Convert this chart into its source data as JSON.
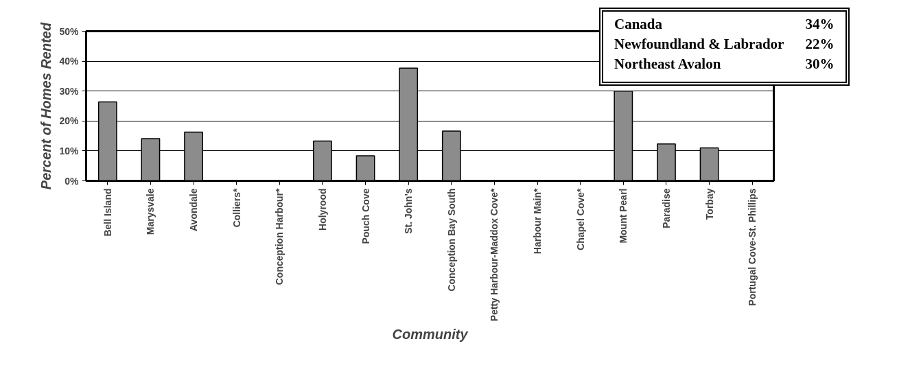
{
  "chart_data": {
    "type": "bar",
    "xlabel": "Community",
    "ylabel": "Percent of Homes Rented",
    "categories": [
      "Bell Island",
      "Marysvale",
      "Avondale",
      "Colliers*",
      "Conception Harbour*",
      "Holyrood",
      "Pouch Cove",
      "St. John's",
      "Conception Bay South",
      "Petty Harbour-Maddox Cove*",
      "Harbour Main*",
      "Chapel Cove*",
      "Mount Pearl",
      "Paradise",
      "Torbay",
      "Portugal Cove-St. Phillips"
    ],
    "values": [
      26.4,
      14.1,
      16.3,
      null,
      null,
      13.3,
      8.4,
      37.7,
      16.6,
      null,
      null,
      null,
      30,
      12.3,
      11.0,
      null
    ],
    "color": "#8c8c8c",
    "ylim": [
      0,
      50
    ],
    "yticks": [
      {
        "value": 0,
        "label": "0%"
      },
      {
        "value": 10,
        "label": "10%"
      },
      {
        "value": 20,
        "label": "20%"
      },
      {
        "value": 30,
        "label": "30%"
      },
      {
        "value": 40,
        "label": "40%"
      },
      {
        "value": 50,
        "label": "50%"
      }
    ],
    "grid": "y",
    "annotations": [
      "Canada",
      "34%",
      "Newfoundland & Labrador",
      "22%",
      "Northeast Avalon",
      "30%"
    ]
  }
}
